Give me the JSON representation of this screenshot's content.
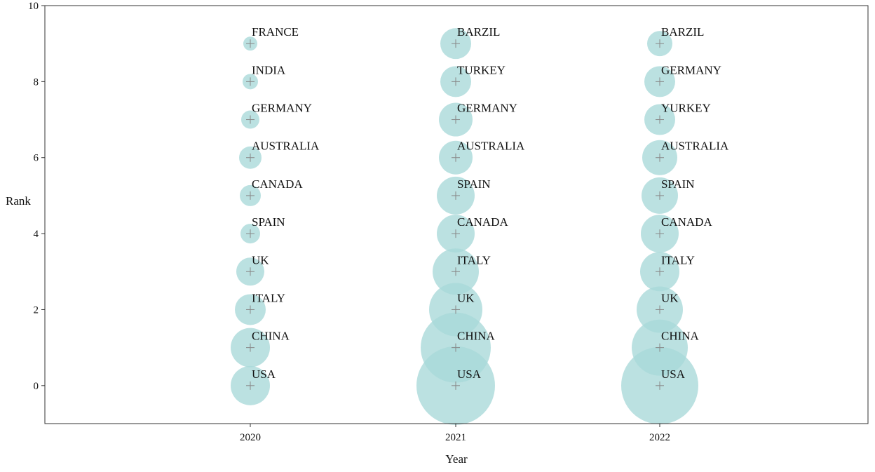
{
  "chart_data": {
    "type": "bubble",
    "xlabel": "Year",
    "ylabel": "Rank",
    "x_categories": [
      "2020",
      "2021",
      "2022"
    ],
    "y_ticks": [
      0,
      2,
      4,
      6,
      8,
      10
    ],
    "ylim": [
      -1,
      10
    ],
    "grid": false,
    "bubble_color": "#a8d8d8",
    "marker_color": "#888888",
    "series": [
      {
        "year": "2020",
        "points": [
          {
            "rank": 0,
            "label": "USA",
            "size": 28
          },
          {
            "rank": 1,
            "label": "CHINA",
            "size": 28
          },
          {
            "rank": 2,
            "label": "ITALY",
            "size": 22
          },
          {
            "rank": 3,
            "label": "UK",
            "size": 20
          },
          {
            "rank": 4,
            "label": "SPAIN",
            "size": 14
          },
          {
            "rank": 5,
            "label": "CANADA",
            "size": 15
          },
          {
            "rank": 6,
            "label": "AUSTRALIA",
            "size": 16
          },
          {
            "rank": 7,
            "label": "GERMANY",
            "size": 13
          },
          {
            "rank": 8,
            "label": "INDIA",
            "size": 11
          },
          {
            "rank": 9,
            "label": "FRANCE",
            "size": 10
          }
        ]
      },
      {
        "year": "2021",
        "points": [
          {
            "rank": 0,
            "label": "USA",
            "size": 56
          },
          {
            "rank": 1,
            "label": "CHINA",
            "size": 50
          },
          {
            "rank": 2,
            "label": "UK",
            "size": 38
          },
          {
            "rank": 3,
            "label": "ITALY",
            "size": 33
          },
          {
            "rank": 4,
            "label": "CANADA",
            "size": 27
          },
          {
            "rank": 5,
            "label": "SPAIN",
            "size": 27
          },
          {
            "rank": 6,
            "label": "AUSTRALIA",
            "size": 24
          },
          {
            "rank": 7,
            "label": "GERMANY",
            "size": 24
          },
          {
            "rank": 8,
            "label": "TURKEY",
            "size": 22
          },
          {
            "rank": 9,
            "label": "BARZIL",
            "size": 22
          }
        ]
      },
      {
        "year": "2022",
        "points": [
          {
            "rank": 0,
            "label": "USA",
            "size": 55
          },
          {
            "rank": 1,
            "label": "CHINA",
            "size": 40
          },
          {
            "rank": 2,
            "label": "UK",
            "size": 33
          },
          {
            "rank": 3,
            "label": "ITALY",
            "size": 28
          },
          {
            "rank": 4,
            "label": "CANADA",
            "size": 27
          },
          {
            "rank": 5,
            "label": "SPAIN",
            "size": 26
          },
          {
            "rank": 6,
            "label": "AUSTRALIA",
            "size": 25
          },
          {
            "rank": 7,
            "label": "YURKEY",
            "size": 22
          },
          {
            "rank": 8,
            "label": "GERMANY",
            "size": 22
          },
          {
            "rank": 9,
            "label": "BARZIL",
            "size": 18
          }
        ]
      }
    ]
  }
}
